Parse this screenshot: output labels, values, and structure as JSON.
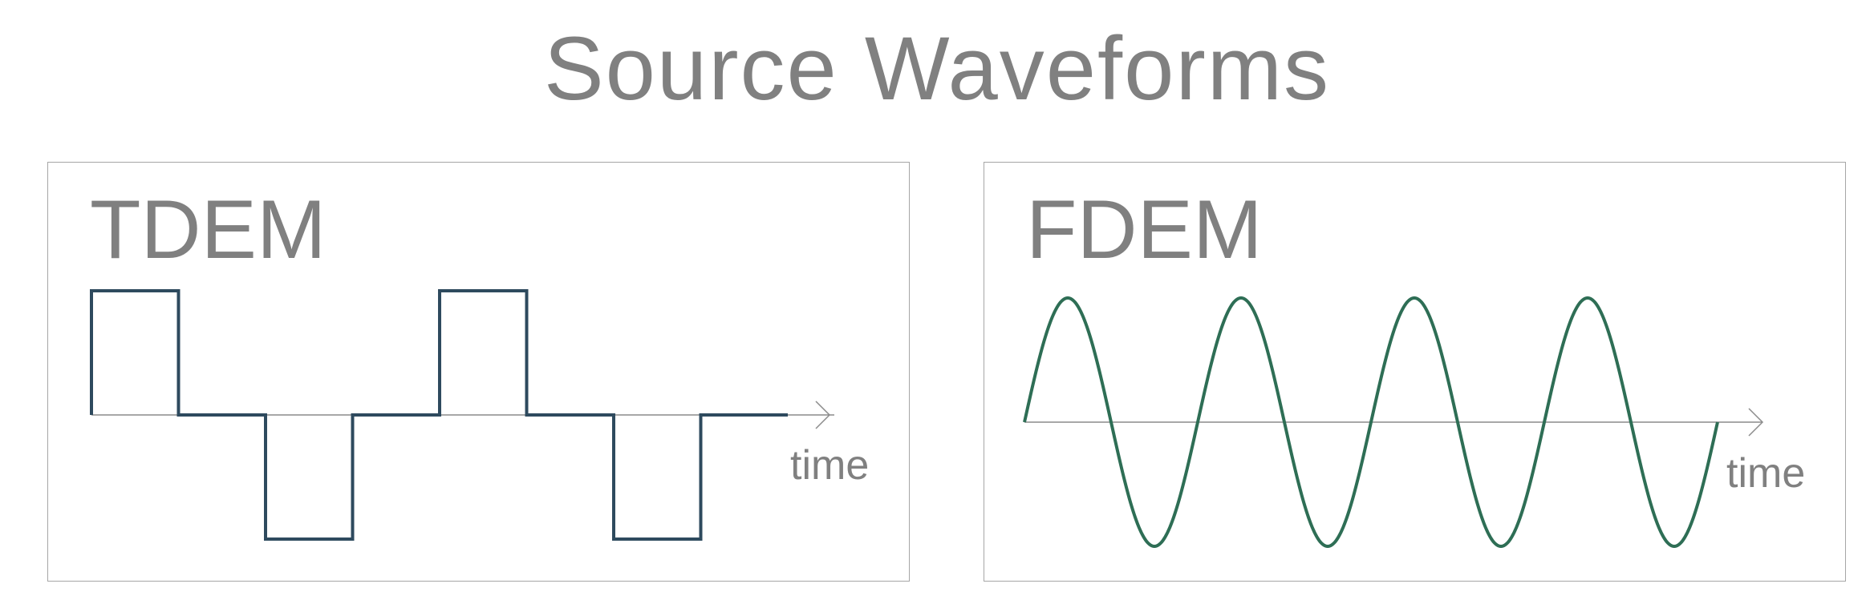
{
  "title": "Source Waveforms",
  "colors": {
    "text": "#808080",
    "axis": "#8c8c8c",
    "frame": "#a6a6a6",
    "square_wave": "#2e4a5e",
    "sine_wave": "#2e6e55"
  },
  "panels": [
    {
      "label": "TDEM",
      "axis_label": "time",
      "waveform": "square",
      "levels": [
        1,
        0,
        -1,
        0,
        1,
        0,
        -1,
        0
      ],
      "segments": 8
    },
    {
      "label": "FDEM",
      "axis_label": "time",
      "waveform": "sine",
      "cycles": 4
    }
  ]
}
